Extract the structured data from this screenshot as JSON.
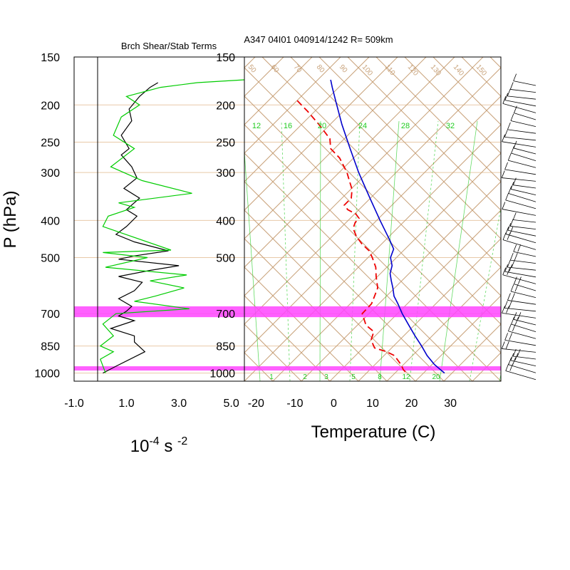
{
  "header": {
    "left_title": "Brch Shear/Stab Terms",
    "right_title": "A347 04I01 040914/1242 R= 509km"
  },
  "left_panel": {
    "xticks": [
      "-1.0",
      "1.0",
      "3.0",
      "5.0"
    ],
    "xtick_values": [
      -1,
      1,
      3,
      5
    ],
    "xlim": [
      -1,
      5.5
    ],
    "unit_base": "10",
    "unit_exp": "-4",
    "unit_mid": " s ",
    "unit_exp2": "-2"
  },
  "y_axis": {
    "label": "P (hPa)",
    "ticks": [
      "150",
      "200",
      "250",
      "300",
      "400",
      "500",
      "700",
      "850",
      "1000"
    ],
    "tick_values": [
      150,
      200,
      250,
      300,
      400,
      500,
      700,
      850,
      1000
    ],
    "range_hpa": [
      150,
      1050
    ]
  },
  "right_panel": {
    "xticks": [
      "-20",
      "-10",
      "0",
      "10",
      "20",
      "30"
    ],
    "xtick_values": [
      -20,
      -10,
      0,
      10,
      20,
      30
    ],
    "xlim": [
      -23,
      43
    ],
    "xlabel": "Temperature (C)",
    "isotherm_labels": [
      "50",
      "60",
      "70",
      "80",
      "90",
      "100",
      "110",
      "120",
      "130",
      "140",
      "150"
    ],
    "mixing_ratio_labels": [
      "12",
      "16",
      "20",
      "24",
      "28",
      "32"
    ],
    "bottom_mixing_labels": [
      "1",
      "2",
      "3",
      "5",
      "8",
      "12",
      "20"
    ]
  },
  "colors": {
    "temperature": "#0000cc",
    "dewpoint": "#ee0000",
    "shear_term": "#000000",
    "stability_term": "#00cc00",
    "layer_band": "#ff44ff",
    "background_lines": "#c8a27a",
    "mixing_ratio": "#22cc22"
  },
  "chart_data": [
    {
      "type": "line",
      "title": "Brch Shear/Stab Terms",
      "xlabel": "10^-4 s^-2",
      "ylabel": "P (hPa)",
      "xlim": [
        -1,
        5.5
      ],
      "ylim": [
        1050,
        150
      ],
      "series": [
        {
          "color": "#000000",
          "points": [
            [
              2.2,
              175
            ],
            [
              1.9,
              180
            ],
            [
              1.5,
              190
            ],
            [
              1.1,
              205
            ],
            [
              1.2,
              220
            ],
            [
              0.8,
              240
            ],
            [
              1.1,
              260
            ],
            [
              0.8,
              270
            ],
            [
              1.2,
              290
            ],
            [
              1.4,
              310
            ],
            [
              0.9,
              330
            ],
            [
              1.5,
              350
            ],
            [
              1.0,
              375
            ],
            [
              1.4,
              390
            ],
            [
              1.0,
              415
            ],
            [
              0.6,
              435
            ],
            [
              1.3,
              455
            ],
            [
              2.6,
              480
            ],
            [
              1.3,
              495
            ],
            [
              0.7,
              505
            ],
            [
              3.0,
              525
            ],
            [
              1.9,
              540
            ],
            [
              0.7,
              560
            ],
            [
              1.6,
              580
            ],
            [
              1.3,
              610
            ],
            [
              0.7,
              640
            ],
            [
              1.2,
              670
            ],
            [
              1.0,
              690
            ],
            [
              0.7,
              710
            ],
            [
              1.3,
              730
            ],
            [
              0.4,
              765
            ],
            [
              1.3,
              800
            ],
            [
              1.3,
              830
            ],
            [
              1.7,
              880
            ],
            [
              0.6,
              960
            ],
            [
              0.1,
              1000
            ]
          ]
        },
        {
          "color": "#00cc00",
          "points": [
            [
              5.5,
              172
            ],
            [
              3.7,
              175
            ],
            [
              2.3,
              180
            ],
            [
              1.0,
              190
            ],
            [
              1.5,
              200
            ],
            [
              0.8,
              215
            ],
            [
              0.5,
              240
            ],
            [
              1.3,
              260
            ],
            [
              0.4,
              290
            ],
            [
              1.6,
              315
            ],
            [
              3.5,
              340
            ],
            [
              0.7,
              360
            ],
            [
              1.3,
              370
            ],
            [
              0.3,
              390
            ],
            [
              0.1,
              415
            ],
            [
              2.7,
              478
            ],
            [
              0.1,
              485
            ],
            [
              1.8,
              500
            ],
            [
              0.2,
              530
            ],
            [
              3.3,
              555
            ],
            [
              1.9,
              575
            ],
            [
              3.2,
              600
            ],
            [
              2.1,
              630
            ],
            [
              1.3,
              650
            ],
            [
              3.4,
              680
            ],
            [
              0.6,
              700
            ],
            [
              0.1,
              745
            ],
            [
              0.5,
              800
            ],
            [
              0.0,
              850
            ],
            [
              0.5,
              880
            ],
            [
              0.0,
              920
            ],
            [
              0.2,
              1000
            ]
          ]
        }
      ],
      "bands_hpa": [
        [
          670,
          715
        ],
        [
          960,
          985
        ]
      ]
    },
    {
      "type": "line",
      "title": "A347 04I01 040914/1242 R= 509km",
      "xlabel": "Temperature (C)",
      "ylabel": "P (hPa)",
      "xlim": [
        -23,
        43
      ],
      "ylim": [
        1050,
        150
      ],
      "series": [
        {
          "color": "#0000cc",
          "points": [
            [
              -0.8,
              172
            ],
            [
              -0.4,
              180
            ],
            [
              0.6,
              197
            ],
            [
              2.1,
              225
            ],
            [
              4.2,
              260
            ],
            [
              6.4,
              300
            ],
            [
              9.3,
              350
            ],
            [
              11.9,
              400
            ],
            [
              14.4,
              450
            ],
            [
              15.4,
              475
            ],
            [
              14.6,
              500
            ],
            [
              15.0,
              525
            ],
            [
              14.5,
              550
            ],
            [
              14.8,
              575
            ],
            [
              15.2,
              600
            ],
            [
              15.5,
              630
            ],
            [
              16.5,
              660
            ],
            [
              17.6,
              700
            ],
            [
              19.3,
              750
            ],
            [
              20.9,
              800
            ],
            [
              22.6,
              850
            ],
            [
              24.0,
              900
            ],
            [
              25.9,
              950
            ],
            [
              28.5,
              1000
            ]
          ]
        },
        {
          "color": "#ee0000",
          "points": [
            [
              -9.4,
              195
            ],
            [
              -6.7,
              208
            ],
            [
              -3.8,
              225
            ],
            [
              -1.0,
              245
            ],
            [
              -0.8,
              260
            ],
            [
              1.5,
              275
            ],
            [
              3.4,
              300
            ],
            [
              4.0,
              315
            ],
            [
              4.7,
              332
            ],
            [
              4.5,
              350
            ],
            [
              2.7,
              365
            ],
            [
              3.6,
              375
            ],
            [
              5.7,
              385
            ],
            [
              6.5,
              395
            ],
            [
              5.5,
              405
            ],
            [
              5.0,
              420
            ],
            [
              5.8,
              440
            ],
            [
              7.2,
              460
            ],
            [
              9.1,
              480
            ],
            [
              9.9,
              500
            ],
            [
              10.8,
              530
            ],
            [
              10.9,
              560
            ],
            [
              11.3,
              600
            ],
            [
              10.5,
              630
            ],
            [
              9.7,
              660
            ],
            [
              7.3,
              700
            ],
            [
              8.3,
              750
            ],
            [
              10.3,
              780
            ],
            [
              9.6,
              820
            ],
            [
              10.5,
              860
            ],
            [
              13.6,
              880
            ],
            [
              15.6,
              900
            ],
            [
              17.3,
              950
            ],
            [
              17.9,
              980
            ],
            [
              18.7,
              1000
            ]
          ]
        }
      ],
      "bands_hpa": [
        [
          670,
          715
        ],
        [
          960,
          985
        ]
      ]
    }
  ]
}
